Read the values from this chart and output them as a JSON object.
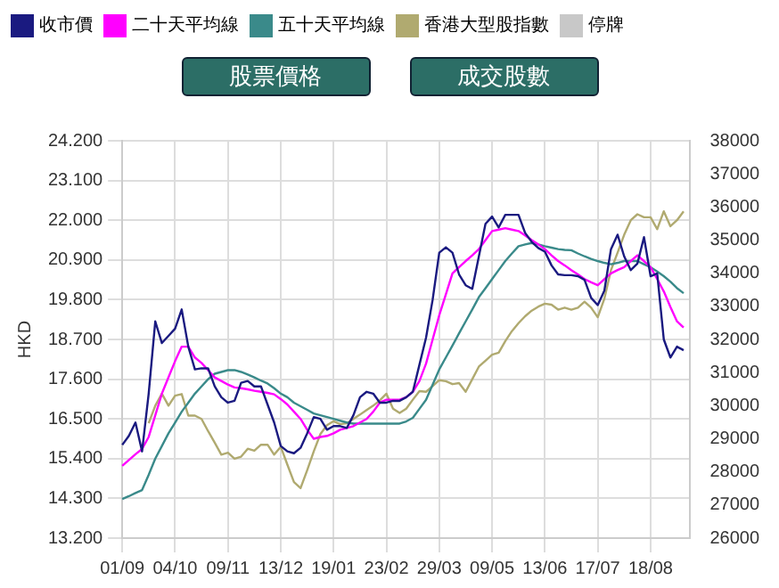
{
  "chart_data": {
    "type": "line",
    "ylabel": "HKD",
    "legend": "top",
    "grid": true,
    "marker": "none",
    "annotations": [
      "股票價格",
      "成交股數"
    ],
    "categories": [
      "01/09",
      null,
      null,
      null,
      null,
      null,
      null,
      null,
      "04/10",
      null,
      null,
      null,
      null,
      null,
      null,
      null,
      "09/11",
      null,
      null,
      null,
      null,
      null,
      null,
      null,
      "13/12",
      null,
      null,
      null,
      null,
      null,
      null,
      null,
      "19/01",
      null,
      null,
      null,
      null,
      null,
      null,
      null,
      "23/02",
      null,
      null,
      null,
      null,
      null,
      null,
      null,
      "29/03",
      null,
      null,
      null,
      null,
      null,
      null,
      null,
      "09/05",
      null,
      null,
      null,
      null,
      null,
      null,
      null,
      "13/06",
      null,
      null,
      null,
      null,
      null,
      null,
      null,
      "17/07",
      null,
      null,
      null,
      null,
      null,
      null,
      null,
      "18/08",
      null,
      null,
      null,
      null,
      null,
      null
    ],
    "ylim": [
      13.2,
      24.2
    ],
    "yticks": [
      {
        "value": 13.2,
        "label": "13.200"
      },
      {
        "value": 14.3,
        "label": "14.300"
      },
      {
        "value": 15.4,
        "label": "15.400"
      },
      {
        "value": 16.5,
        "label": "16.500"
      },
      {
        "value": 17.6,
        "label": "17.600"
      },
      {
        "value": 18.7,
        "label": "18.700"
      },
      {
        "value": 19.8,
        "label": "19.800"
      },
      {
        "value": 20.9,
        "label": "20.900"
      },
      {
        "value": 22,
        "label": "22.000"
      },
      {
        "value": 23.1,
        "label": "23.100"
      },
      {
        "value": 24.2,
        "label": "24.200"
      }
    ],
    "y2lim": [
      26000,
      38000
    ],
    "y2ticks": [
      26000,
      27000,
      28000,
      29000,
      30000,
      31000,
      32000,
      33000,
      34000,
      35000,
      36000,
      37000,
      38000
    ],
    "series": [
      {
        "name": "收市價",
        "color": "#1a1a80",
        "values": [
          15.78,
          16.03,
          16.4,
          15.6,
          17.2,
          19.2,
          18.6,
          18.8,
          19.0,
          19.53,
          18.5,
          17.87,
          17.9,
          17.9,
          17.4,
          17.1,
          16.95,
          17.0,
          17.5,
          17.55,
          17.4,
          17.4,
          16.9,
          16.4,
          15.75,
          15.6,
          15.55,
          15.7,
          16.1,
          16.55,
          16.5,
          16.2,
          16.3,
          16.3,
          16.25,
          16.6,
          17.1,
          17.25,
          17.2,
          16.95,
          16.95,
          17.0,
          17.0,
          17.1,
          17.25,
          18.0,
          18.75,
          19.8,
          21.1,
          21.25,
          21.1,
          20.5,
          20.2,
          20.1,
          21.0,
          21.9,
          22.1,
          21.8,
          22.15,
          22.15,
          22.15,
          21.65,
          21.4,
          21.23,
          21.13,
          20.75,
          20.5,
          20.48,
          20.48,
          20.45,
          20.35,
          19.85,
          19.65,
          20.05,
          21.2,
          21.6,
          21.0,
          20.62,
          20.8,
          21.53,
          20.45,
          20.53,
          18.7,
          18.2,
          18.5,
          18.4,
          null
        ]
      },
      {
        "name": "二十天平均線",
        "color": "#ff00ff",
        "values": [
          15.2,
          15.36,
          15.52,
          15.67,
          16.0,
          16.6,
          17.2,
          17.65,
          18.1,
          18.5,
          18.5,
          18.2,
          18.05,
          17.85,
          17.65,
          17.55,
          17.45,
          17.37,
          17.35,
          17.32,
          17.28,
          17.25,
          17.22,
          17.18,
          17.05,
          16.9,
          16.7,
          16.5,
          16.2,
          15.95,
          16.0,
          16.03,
          16.1,
          16.2,
          16.25,
          16.3,
          16.4,
          16.5,
          16.7,
          16.95,
          17.03,
          17.03,
          17.03,
          17.1,
          17.25,
          17.55,
          18.03,
          18.7,
          19.37,
          19.95,
          20.53,
          20.7,
          20.87,
          21.03,
          21.2,
          21.45,
          21.7,
          21.74,
          21.78,
          21.74,
          21.7,
          21.58,
          21.45,
          21.33,
          21.2,
          21.03,
          20.87,
          20.75,
          20.62,
          20.5,
          20.37,
          20.28,
          20.2,
          20.37,
          20.53,
          20.62,
          20.7,
          20.87,
          21.03,
          20.87,
          20.7,
          20.37,
          20.03,
          19.6,
          19.2,
          19.03,
          null
        ]
      },
      {
        "name": "五十天平均線",
        "color": "#3a8a8a",
        "values": [
          14.28,
          14.36,
          14.45,
          14.53,
          14.95,
          15.4,
          15.75,
          16.1,
          16.4,
          16.7,
          16.95,
          17.2,
          17.4,
          17.6,
          17.75,
          17.8,
          17.85,
          17.85,
          17.8,
          17.73,
          17.65,
          17.56,
          17.48,
          17.35,
          17.2,
          17.1,
          16.95,
          16.85,
          16.75,
          16.65,
          16.6,
          16.55,
          16.5,
          16.45,
          16.4,
          16.37,
          16.37,
          16.37,
          16.37,
          16.37,
          16.37,
          16.37,
          16.37,
          16.43,
          16.53,
          16.78,
          17.03,
          17.45,
          17.87,
          18.2,
          18.53,
          18.87,
          19.2,
          19.53,
          19.87,
          20.12,
          20.37,
          20.62,
          20.87,
          21.08,
          21.28,
          21.33,
          21.37,
          21.33,
          21.28,
          21.24,
          21.2,
          21.18,
          21.17,
          21.08,
          21.0,
          20.93,
          20.87,
          20.82,
          20.78,
          20.82,
          20.87,
          20.87,
          20.87,
          20.78,
          20.7,
          20.58,
          20.45,
          20.3,
          20.12,
          19.98,
          null
        ]
      },
      {
        "name": "香港大型股指數",
        "color": "#b0aa70",
        "axis": "y2",
        "values": [
          null,
          null,
          null,
          null,
          29470,
          30000,
          30360,
          30000,
          30300,
          30350,
          29700,
          29700,
          29600,
          29230,
          28880,
          28520,
          28580,
          28400,
          28460,
          28700,
          28640,
          28820,
          28820,
          28520,
          28760,
          28220,
          27690,
          27510,
          28050,
          28620,
          29140,
          29410,
          29530,
          29440,
          29470,
          29600,
          29730,
          29870,
          30000,
          30160,
          30360,
          29910,
          29780,
          29910,
          30180,
          30440,
          30420,
          30590,
          30770,
          30740,
          30650,
          30680,
          30420,
          30800,
          31180,
          31360,
          31540,
          31600,
          31950,
          32250,
          32490,
          32700,
          32870,
          32990,
          33080,
          33050,
          32900,
          32960,
          32900,
          32960,
          33140,
          32960,
          32670,
          33230,
          34090,
          34620,
          35160,
          35600,
          35780,
          35690,
          35690,
          35330,
          35870,
          35420,
          35600,
          35870,
          null
        ]
      },
      {
        "name": "停牌",
        "color": "#c8c8c8",
        "values": [
          null,
          null,
          null,
          null,
          null,
          null,
          null,
          null,
          null,
          null,
          null,
          null,
          null,
          null,
          null,
          null,
          null,
          null,
          null,
          null,
          null,
          null,
          null,
          null,
          null,
          null,
          null,
          null,
          null,
          null,
          null,
          null,
          null,
          null,
          null,
          null,
          null,
          null,
          null,
          null,
          null,
          null,
          null,
          null,
          null,
          null,
          null,
          null,
          null,
          null,
          null,
          null,
          null,
          null,
          null,
          null,
          null,
          null,
          null,
          null,
          null,
          null,
          null,
          null,
          null,
          null,
          null,
          null,
          null,
          null,
          null,
          null,
          null,
          null,
          null,
          null,
          null,
          null,
          null,
          null,
          null,
          null,
          null,
          null,
          null,
          null,
          null
        ]
      }
    ]
  }
}
